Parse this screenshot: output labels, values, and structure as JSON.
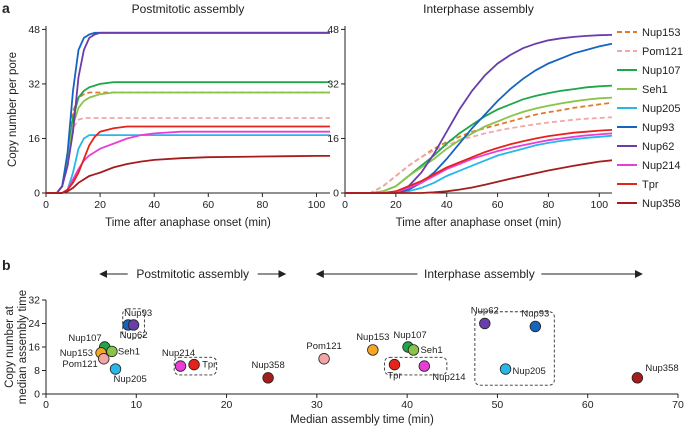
{
  "panel_a_label": "a",
  "panel_b_label": "b",
  "chart_data": [
    {
      "type": "line",
      "title": "Postmitotic assembly",
      "xlabel": "Time after anaphase onset (min)",
      "ylabel": "Copy number per pore",
      "xlim": [
        0,
        105
      ],
      "ylim": [
        0,
        49
      ],
      "xticks": [
        "0",
        "20",
        "40",
        "60",
        "80",
        "100"
      ],
      "yticks": [
        "0",
        "16",
        "32",
        "48"
      ],
      "x": [
        0,
        2,
        4,
        6,
        8,
        10,
        12,
        14,
        16,
        18,
        20,
        25,
        30,
        35,
        40,
        50,
        60,
        70,
        80,
        90,
        100,
        105
      ],
      "series": [
        {
          "name": "Nup153",
          "values": [
            0,
            0,
            0,
            2,
            10,
            24,
            28,
            29,
            29.5,
            29.5,
            29.5,
            29.5,
            29.5,
            29.5,
            29.5,
            29.5,
            29.5,
            29.5,
            29.5,
            29.5,
            29.5,
            29.5
          ]
        },
        {
          "name": "Pom121",
          "values": [
            0,
            0,
            0,
            2,
            10,
            19,
            21.5,
            22,
            22,
            22,
            22,
            22,
            22,
            22,
            22,
            22,
            22,
            22,
            22,
            22,
            22,
            22
          ]
        },
        {
          "name": "Nup107",
          "values": [
            0,
            0,
            0,
            2,
            10,
            22,
            28,
            30,
            31,
            31.5,
            32,
            32.5,
            32.5,
            32.5,
            32.5,
            32.5,
            32.5,
            32.5,
            32.5,
            32.5,
            32.5,
            32.5
          ]
        },
        {
          "name": "Seh1",
          "values": [
            0,
            0,
            0,
            2,
            10,
            20,
            25,
            27,
            28,
            28.5,
            29,
            29.5,
            29.5,
            29.5,
            29.5,
            29.5,
            29.5,
            29.5,
            29.5,
            29.5,
            29.5,
            29.5
          ]
        },
        {
          "name": "Nup205",
          "values": [
            0,
            0,
            0,
            0,
            1,
            6,
            13,
            16,
            17,
            17,
            17,
            17,
            17,
            17,
            17,
            17,
            17,
            17,
            17,
            17,
            17,
            17
          ]
        },
        {
          "name": "Nup93",
          "values": [
            0,
            0,
            0,
            2,
            12,
            30,
            42,
            45.5,
            46.5,
            47,
            47,
            47,
            47,
            47,
            47,
            47,
            47,
            47,
            47,
            47,
            47,
            47
          ]
        },
        {
          "name": "Nup62",
          "values": [
            0,
            0,
            0,
            2,
            8,
            18,
            34,
            42,
            45.5,
            46.5,
            47,
            47,
            47,
            47,
            47,
            47,
            47,
            47,
            47,
            47,
            47,
            47
          ]
        },
        {
          "name": "Nup214",
          "values": [
            0,
            0,
            0,
            0,
            1,
            4,
            7,
            9.5,
            11,
            12,
            13,
            14.5,
            16,
            17,
            17.5,
            18,
            18,
            18,
            18,
            18,
            18,
            18
          ]
        },
        {
          "name": "Tpr",
          "values": [
            0,
            0,
            0,
            0,
            1,
            3,
            6,
            10,
            14,
            16.5,
            18,
            19,
            19.5,
            19.5,
            19.5,
            19.5,
            19.5,
            19.5,
            19.5,
            19.5,
            19.5,
            19.5
          ]
        },
        {
          "name": "Nup358",
          "values": [
            0,
            0,
            0,
            0,
            0.5,
            1.5,
            3,
            4,
            5,
            5.5,
            6,
            7.5,
            8.5,
            9.2,
            9.7,
            10.2,
            10.5,
            10.6,
            10.7,
            10.8,
            10.9,
            10.9
          ]
        }
      ]
    },
    {
      "type": "line",
      "title": "Interphase assembly",
      "xlabel": "Time after anaphase onset (min)",
      "ylabel": "",
      "xlim": [
        0,
        105
      ],
      "ylim": [
        0,
        49
      ],
      "xticks": [
        "0",
        "20",
        "40",
        "60",
        "80",
        "100"
      ],
      "yticks": [
        "0",
        "16",
        "32",
        "48"
      ],
      "x": [
        0,
        10,
        15,
        20,
        25,
        30,
        35,
        40,
        45,
        50,
        55,
        60,
        65,
        70,
        75,
        80,
        85,
        90,
        95,
        100,
        105
      ],
      "series": [
        {
          "name": "Nup153",
          "values": [
            0,
            0,
            2,
            5,
            8,
            10.5,
            13,
            15,
            16.5,
            18,
            19,
            20,
            21,
            22,
            23,
            23.7,
            24.3,
            25,
            25.5,
            26,
            26.5
          ]
        },
        {
          "name": "Pom121",
          "values": [
            0,
            0,
            2,
            5,
            8,
            10.5,
            12.5,
            14,
            15.5,
            16.5,
            17.5,
            18.3,
            19,
            19.6,
            20.2,
            20.7,
            21.1,
            21.5,
            21.8,
            22,
            22.2
          ]
        },
        {
          "name": "Nup107",
          "values": [
            0,
            0,
            0.5,
            2,
            5,
            8,
            11,
            14.5,
            17.5,
            20,
            22.5,
            24.5,
            26,
            27.5,
            28.5,
            29.3,
            30,
            30.5,
            31,
            31.3,
            31.5
          ]
        },
        {
          "name": "Seh1",
          "values": [
            0,
            0,
            0.5,
            2,
            5,
            7.5,
            10,
            13,
            15.5,
            17.5,
            19.5,
            21,
            22.5,
            23.8,
            24.8,
            25.6,
            26.3,
            26.9,
            27.4,
            27.8,
            28
          ]
        },
        {
          "name": "Nup205",
          "values": [
            0,
            0,
            0,
            0,
            0.5,
            1.5,
            3,
            5,
            6.5,
            8,
            9.5,
            11,
            12,
            13,
            14,
            14.7,
            15.3,
            15.8,
            16.2,
            16.5,
            16.8
          ]
        },
        {
          "name": "Nup93",
          "values": [
            0,
            0,
            0,
            0,
            1,
            3,
            6,
            10,
            14.5,
            19,
            23,
            27,
            30.5,
            33.5,
            36,
            38,
            39.5,
            41,
            42,
            43,
            43.8
          ]
        },
        {
          "name": "Nup62",
          "values": [
            0,
            0,
            0,
            0.3,
            2,
            6,
            11.5,
            18,
            24.5,
            30,
            34.5,
            38,
            40.5,
            42.5,
            43.8,
            44.8,
            45.4,
            45.8,
            46.1,
            46.3,
            46.4
          ]
        },
        {
          "name": "Nup214",
          "values": [
            0,
            0,
            0,
            0.3,
            1.5,
            3,
            5,
            7,
            8.5,
            10,
            11.2,
            12.3,
            13.2,
            14,
            14.8,
            15.5,
            16,
            16.5,
            16.9,
            17.2,
            17.5
          ]
        },
        {
          "name": "Tpr",
          "values": [
            0,
            0,
            0,
            0.5,
            2,
            3.5,
            5.5,
            7.5,
            9,
            10.5,
            12,
            13.2,
            14.3,
            15.2,
            16,
            16.7,
            17.2,
            17.7,
            18,
            18.3,
            18.5
          ]
        },
        {
          "name": "Nup358",
          "values": [
            0,
            0,
            0,
            0,
            0,
            0,
            0.2,
            0.5,
            1,
            1.6,
            2.4,
            3.3,
            4.2,
            5,
            5.8,
            6.6,
            7.3,
            8,
            8.6,
            9.2,
            9.6
          ]
        }
      ]
    },
    {
      "type": "scatter",
      "title": "",
      "xlabel": "Median assembly time (min)",
      "ylabel": "Copy number at median assembly time",
      "xlim": [
        0,
        70
      ],
      "ylim": [
        0,
        32
      ],
      "xticks": [
        "0",
        "10",
        "20",
        "30",
        "40",
        "50",
        "60",
        "70"
      ],
      "yticks": [
        "0",
        "8",
        "16",
        "24",
        "32"
      ],
      "range_labels": [
        {
          "label": "Postmitotic assembly",
          "from": 6,
          "to": 26.5
        },
        {
          "label": "Interphase assembly",
          "from": 30,
          "to": 66
        }
      ],
      "points": [
        {
          "name": "Nup107",
          "group": "postmitotic",
          "x": 6.5,
          "y": 16
        },
        {
          "name": "Seh1",
          "group": "postmitotic",
          "x": 7.3,
          "y": 14.5
        },
        {
          "name": "Nup153",
          "group": "postmitotic",
          "x": 6.1,
          "y": 14
        },
        {
          "name": "Pom121",
          "group": "postmitotic",
          "x": 6.4,
          "y": 12
        },
        {
          "name": "Nup205",
          "group": "postmitotic",
          "x": 7.7,
          "y": 8.5
        },
        {
          "name": "Nup93",
          "group": "postmitotic",
          "x": 9.1,
          "y": 23.5
        },
        {
          "name": "Nup62",
          "group": "postmitotic",
          "x": 9.7,
          "y": 23.5
        },
        {
          "name": "Nup214",
          "group": "postmitotic",
          "x": 14.9,
          "y": 9.5
        },
        {
          "name": "Tpr",
          "group": "postmitotic",
          "x": 16.4,
          "y": 10
        },
        {
          "name": "Nup358",
          "group": "postmitotic",
          "x": 24.6,
          "y": 5.5
        },
        {
          "name": "Pom121",
          "group": "interphase",
          "x": 30.8,
          "y": 12
        },
        {
          "name": "Nup153",
          "group": "interphase",
          "x": 36.2,
          "y": 15
        },
        {
          "name": "Nup107",
          "group": "interphase",
          "x": 40.1,
          "y": 16
        },
        {
          "name": "Seh1",
          "group": "interphase",
          "x": 40.7,
          "y": 15
        },
        {
          "name": "Tpr",
          "group": "interphase",
          "x": 38.6,
          "y": 10
        },
        {
          "name": "Nup214",
          "group": "interphase",
          "x": 41.9,
          "y": 9.5
        },
        {
          "name": "Nup62",
          "group": "interphase",
          "x": 48.6,
          "y": 24
        },
        {
          "name": "Nup93",
          "group": "interphase",
          "x": 54.2,
          "y": 23
        },
        {
          "name": "Nup205",
          "group": "interphase",
          "x": 50.9,
          "y": 8.5
        },
        {
          "name": "Nup358",
          "group": "interphase",
          "x": 65.5,
          "y": 5.5
        }
      ]
    }
  ],
  "legend": [
    {
      "name": "Nup153",
      "color": "#E07B2A",
      "dash": true
    },
    {
      "name": "Pom121",
      "color": "#F0A8A8",
      "dash": true
    },
    {
      "name": "Nup107",
      "color": "#1FA64A",
      "dash": false
    },
    {
      "name": "Seh1",
      "color": "#8BC34A",
      "dash": false
    },
    {
      "name": "Nup205",
      "color": "#29B6E8",
      "dash": false
    },
    {
      "name": "Nup93",
      "color": "#1565C0",
      "dash": false
    },
    {
      "name": "Nup62",
      "color": "#6A3DAA",
      "dash": false
    },
    {
      "name": "Nup214",
      "color": "#E83ED8",
      "dash": false
    },
    {
      "name": "Tpr",
      "color": "#E5231B",
      "dash": false
    },
    {
      "name": "Nup358",
      "color": "#A61C1C",
      "dash": false
    }
  ],
  "scatter_colors": {
    "Nup153": "#F5A623",
    "Pom121": "#F3A5A5",
    "Nup107": "#1FA64A",
    "Seh1": "#8BC34A",
    "Nup205": "#29B6E8",
    "Nup93": "#1565C0",
    "Nup62": "#6A3DAA",
    "Nup214": "#E83ED8",
    "Tpr": "#E5231B",
    "Nup358": "#A61C1C"
  }
}
